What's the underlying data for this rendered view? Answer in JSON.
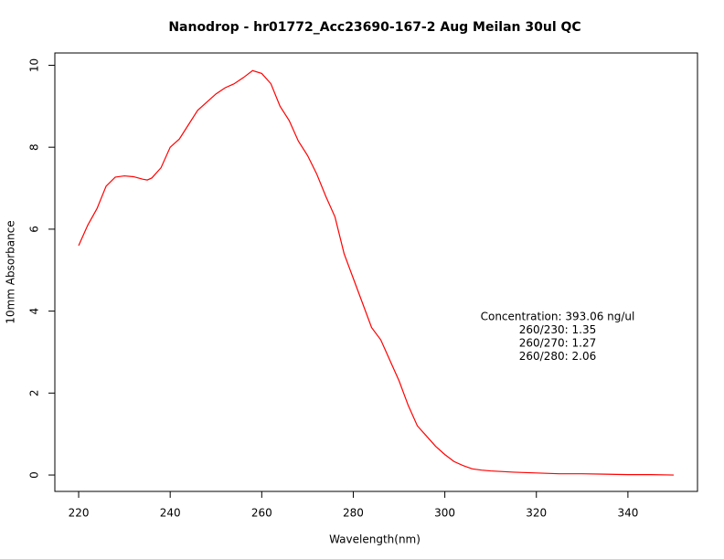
{
  "chart_data": {
    "type": "line",
    "title": "Nanodrop - hr01772_Acc23690-167-2 Aug Meilan 30ul QC",
    "x_label": "Wavelength(nm)",
    "y_label": "10mm Absorbance",
    "annotations": [
      "Concentration: 393.06 ng/ul",
      "260/230: 1.35",
      "260/270: 1.27",
      "260/280: 2.06"
    ],
    "x": [
      220,
      222,
      224,
      226,
      228,
      230,
      232,
      234,
      235,
      236,
      238,
      240,
      242,
      244,
      246,
      248,
      250,
      252,
      254,
      256,
      258,
      260,
      262,
      264,
      266,
      268,
      270,
      272,
      274,
      276,
      278,
      280,
      282,
      284,
      286,
      288,
      290,
      292,
      294,
      296,
      298,
      300,
      302,
      304,
      306,
      308,
      310,
      315,
      320,
      325,
      330,
      335,
      340,
      345,
      350
    ],
    "series": [
      {
        "color": "#ff0000",
        "values": [
          5.6,
          6.1,
          6.5,
          7.05,
          7.27,
          7.3,
          7.28,
          7.22,
          7.2,
          7.25,
          7.5,
          8.0,
          8.2,
          8.55,
          8.9,
          9.1,
          9.3,
          9.45,
          9.55,
          9.7,
          9.87,
          9.8,
          9.55,
          9.0,
          8.65,
          8.15,
          7.8,
          7.35,
          6.8,
          6.3,
          5.4,
          4.8,
          4.2,
          3.6,
          3.3,
          2.8,
          2.3,
          1.7,
          1.2,
          0.95,
          0.7,
          0.5,
          0.33,
          0.23,
          0.15,
          0.12,
          0.1,
          0.07,
          0.05,
          0.03,
          0.03,
          0.02,
          0.01,
          0.01,
          0.0
        ]
      }
    ],
    "xlim": [
      214.8,
      355.2
    ],
    "ylim": [
      -0.4,
      10.3
    ],
    "xticks": [
      220,
      240,
      260,
      280,
      300,
      320,
      340
    ],
    "yticks": [
      0,
      2,
      4,
      6,
      8,
      10
    ]
  }
}
